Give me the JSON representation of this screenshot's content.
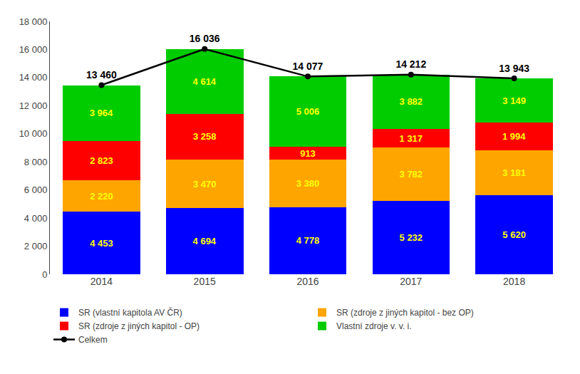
{
  "chart_data": {
    "type": "bar",
    "stacked": true,
    "data_labels": true,
    "grid": false,
    "legend": "bottom",
    "categories": [
      "2014",
      "2015",
      "2016",
      "2017",
      "2018"
    ],
    "series": [
      {
        "name": "SR (vlastní kapitola AV ČR)",
        "type": "bar",
        "color": "#0000FF",
        "values": [
          4453,
          4694,
          4778,
          5232,
          5620
        ],
        "value_labels": [
          "4 453",
          "4 694",
          "4 778",
          "5 232",
          "5 620"
        ]
      },
      {
        "name": "SR (zdroje z jiných kapitol - bez OP)",
        "type": "bar",
        "color": "#FFA500",
        "values": [
          2220,
          3470,
          3380,
          3782,
          3181
        ],
        "value_labels": [
          "2 220",
          "3 470",
          "3 380",
          "3 782",
          "3 181"
        ]
      },
      {
        "name": "SR (zdroje z jiných kapitol - OP)",
        "type": "bar",
        "color": "#FF0000",
        "values": [
          2823,
          3258,
          913,
          1317,
          1994
        ],
        "value_labels": [
          "2 823",
          "3 258",
          "913",
          "1 317",
          "1 994"
        ]
      },
      {
        "name": "Vlastní zdroje v. v. i.",
        "type": "bar",
        "color": "#00CC00",
        "values": [
          3964,
          4614,
          5006,
          3882,
          3149
        ],
        "value_labels": [
          "3 964",
          "4 614",
          "5 006",
          "3 882",
          "3 149"
        ]
      },
      {
        "name": "Celkem",
        "type": "line",
        "color": "#000000",
        "marker": "circle",
        "values": [
          13460,
          16036,
          14077,
          14212,
          13943
        ],
        "value_labels": [
          "13 460",
          "16 036",
          "14 077",
          "14 212",
          "13 943"
        ]
      }
    ],
    "ylim": [
      0,
      18000
    ],
    "yticks": [
      0,
      {
        "value": 2000,
        "label": "2 000"
      },
      {
        "value": 4000,
        "label": "4 000"
      },
      {
        "value": 6000,
        "label": "6 000"
      },
      {
        "value": 8000,
        "label": "8 000"
      },
      {
        "value": 10000,
        "label": "10 000"
      },
      {
        "value": 12000,
        "label": "12 000"
      },
      {
        "value": 14000,
        "label": "14 000"
      },
      {
        "value": 16000,
        "label": "16 000"
      },
      {
        "value": 18000,
        "label": "18 000"
      }
    ]
  }
}
